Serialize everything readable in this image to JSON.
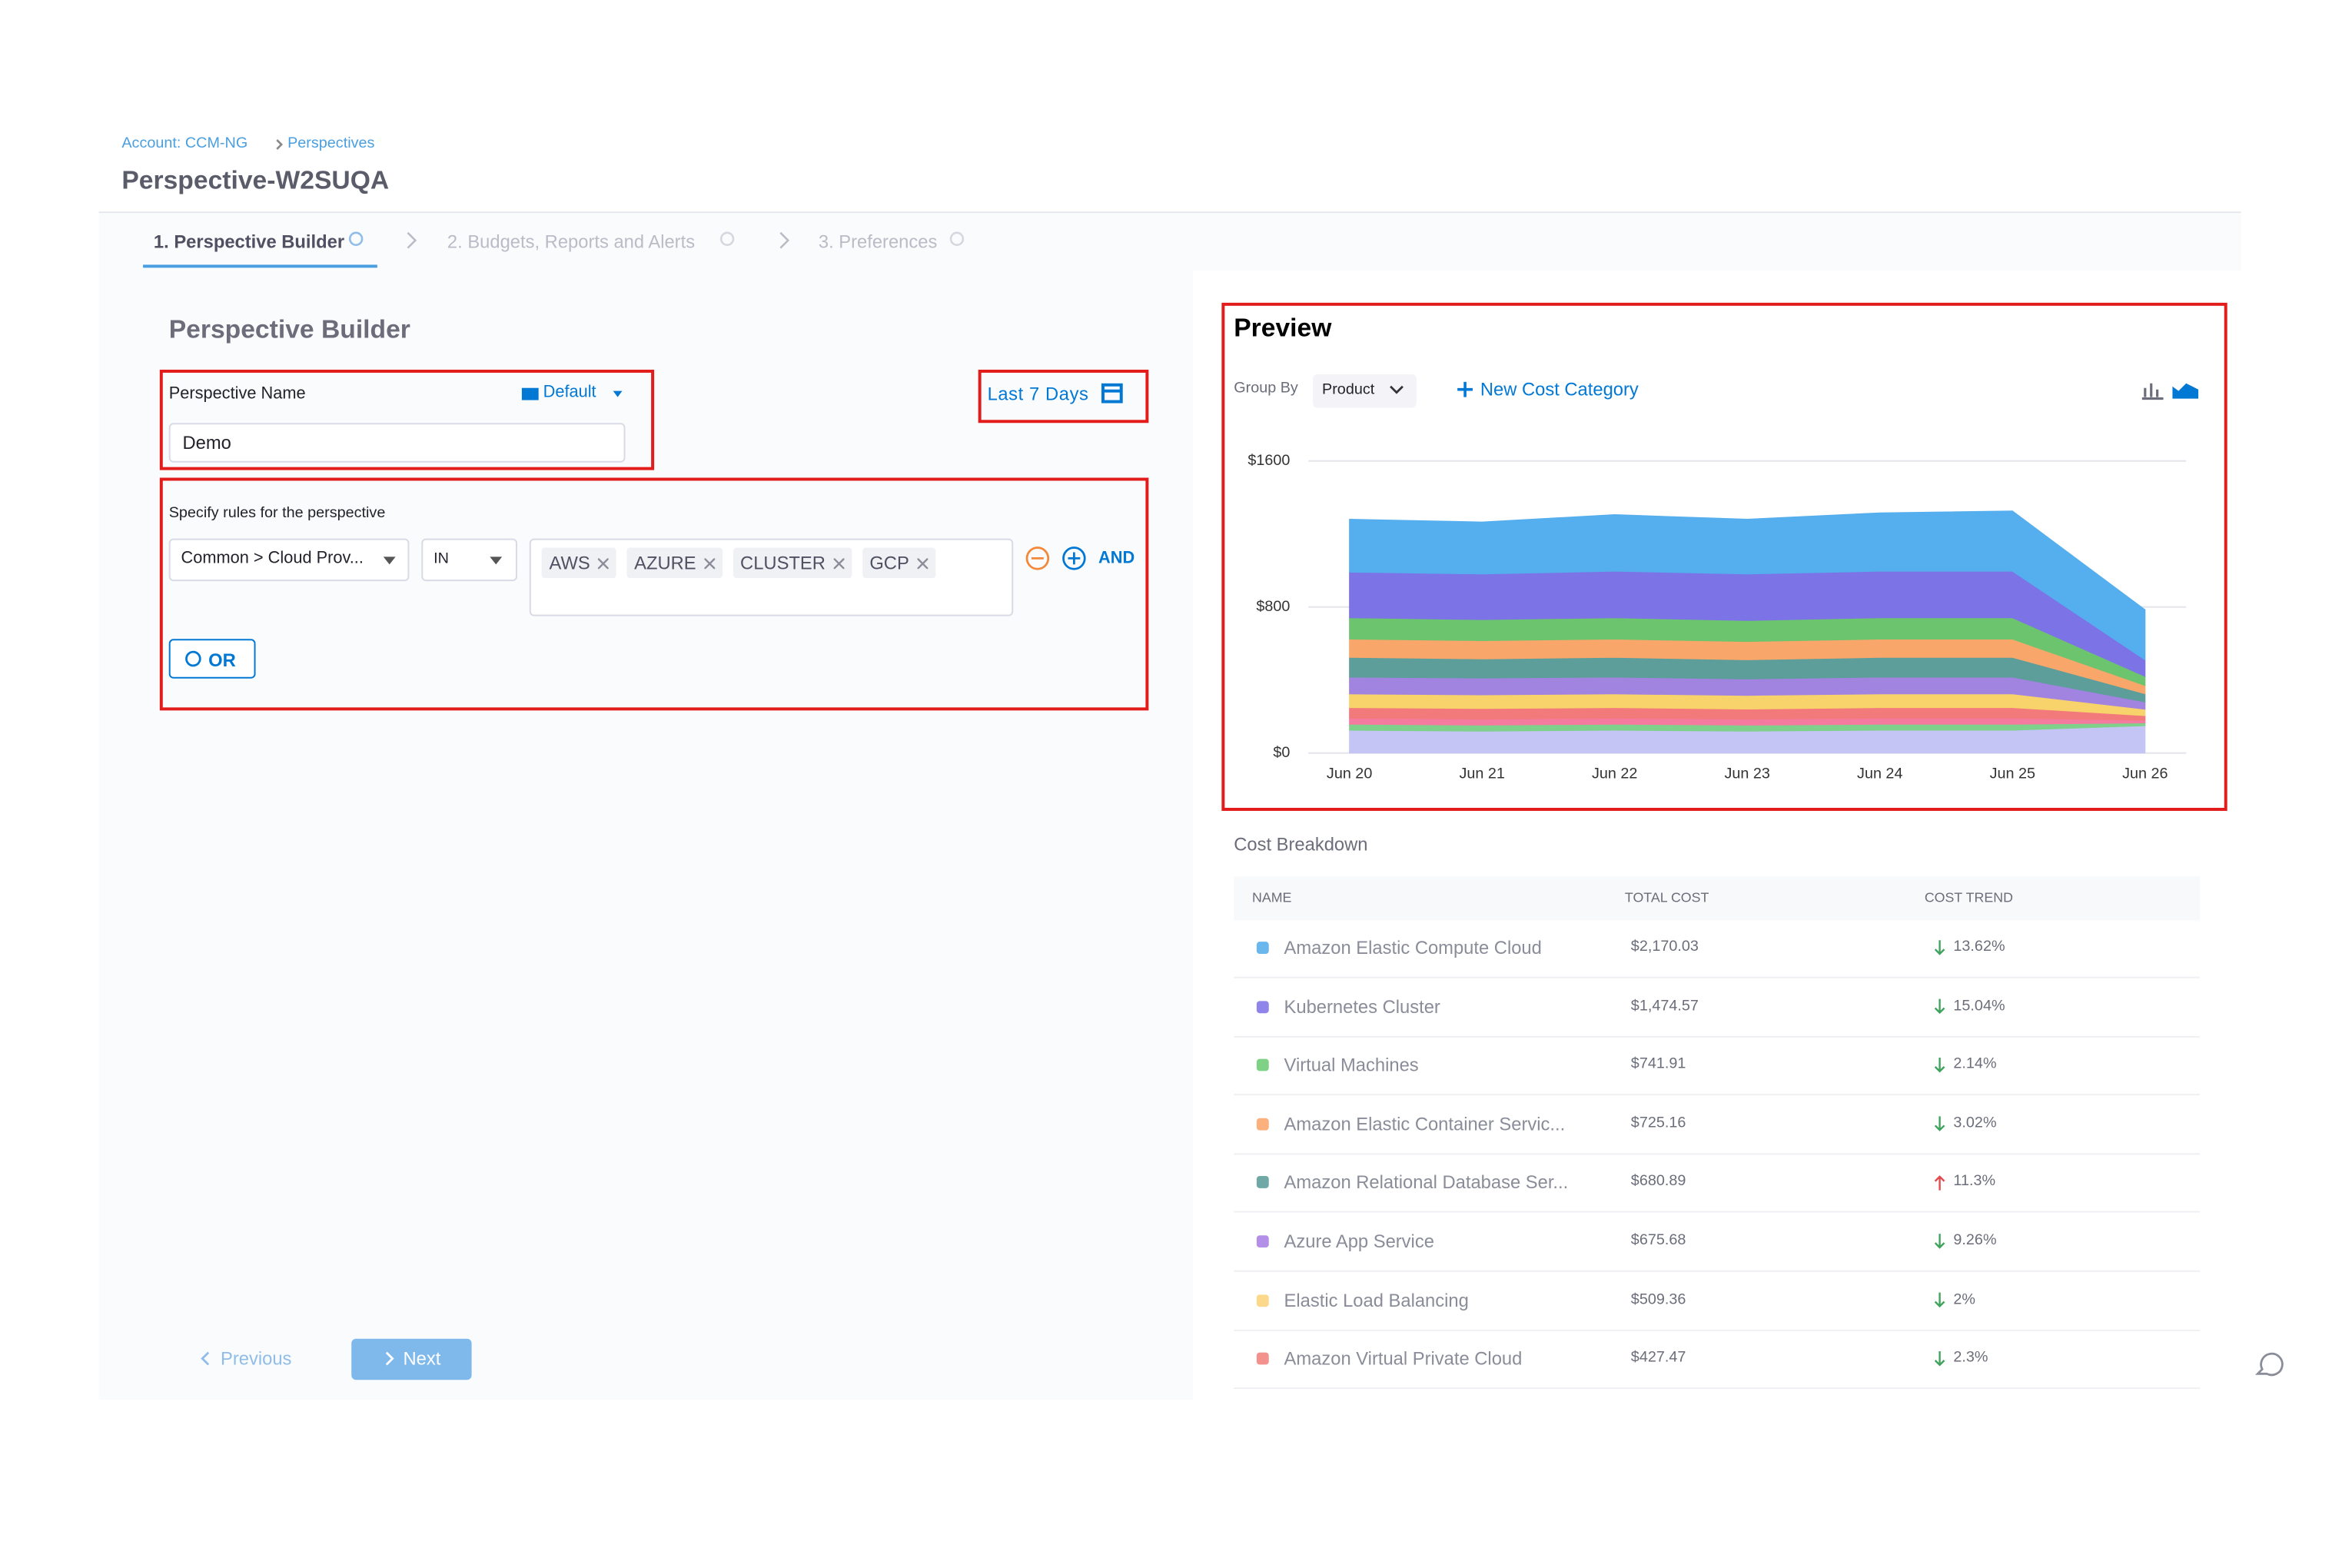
{
  "breadcrumb": [
    "Account: CCM-NG",
    "Perspectives"
  ],
  "title": "Perspective-W2SUQA",
  "steps": [
    "1. Perspective Builder",
    "2. Budgets, Reports and Alerts",
    "3. Preferences"
  ],
  "builder": {
    "heading": "Perspective Builder",
    "name_label": "Perspective Name",
    "folder": "Default",
    "name_value": "Demo",
    "time_range": "Last 7 Days",
    "rules_label": "Specify rules for the perspective",
    "field": "Common > Cloud Prov...",
    "operator": "IN",
    "values": [
      "AWS",
      "AZURE",
      "CLUSTER",
      "GCP"
    ],
    "and": "AND",
    "or": "OR"
  },
  "nav": {
    "previous": "Previous",
    "next": "Next"
  },
  "preview": {
    "heading": "Preview",
    "group_by_label": "Group By",
    "group_by": "Product",
    "new_category": "New Cost Category"
  },
  "chart_data": {
    "type": "area",
    "stacked": true,
    "grid": true,
    "categories": [
      "Jun 20",
      "Jun 21",
      "Jun 22",
      "Jun 23",
      "Jun 24",
      "Jun 25",
      "Jun 26"
    ],
    "ylim": [
      0,
      1600
    ],
    "yticks": [
      {
        "value": 0,
        "label": "$0"
      },
      {
        "value": 800,
        "label": "$800"
      },
      {
        "value": 1600,
        "label": "$1600"
      }
    ],
    "series": [
      {
        "color": "#c4c5f5",
        "values": [
          125,
          120,
          125,
          120,
          125,
          125,
          150
        ]
      },
      {
        "color": "#7fd08a",
        "values": [
          33,
          33,
          33,
          33,
          33,
          33,
          15
        ]
      },
      {
        "color": "#f57aa0",
        "values": [
          33,
          33,
          33,
          33,
          33,
          33,
          15
        ]
      },
      {
        "color": "#f27a7a",
        "values": [
          58,
          58,
          58,
          55,
          58,
          58,
          25
        ]
      },
      {
        "color": "#f8d36b",
        "values": [
          75,
          75,
          75,
          75,
          75,
          75,
          35
        ]
      },
      {
        "color": "#a183e0",
        "values": [
          92,
          92,
          92,
          90,
          92,
          92,
          40
        ]
      },
      {
        "color": "#5d9e9a",
        "values": [
          108,
          105,
          108,
          105,
          108,
          108,
          45
        ]
      },
      {
        "color": "#f9a66a",
        "values": [
          100,
          100,
          100,
          100,
          100,
          100,
          45
        ]
      },
      {
        "color": "#6cc46f",
        "values": [
          117,
          115,
          117,
          115,
          117,
          117,
          50
        ]
      },
      {
        "color": "#7c73e6",
        "values": [
          250,
          250,
          255,
          255,
          255,
          255,
          90
        ]
      },
      {
        "color": "#55aeee",
        "values": [
          290,
          285,
          310,
          300,
          320,
          330,
          275
        ]
      }
    ]
  },
  "breakdown": {
    "title": "Cost Breakdown",
    "columns": [
      "NAME",
      "TOTAL COST",
      "COST TREND"
    ],
    "rows": [
      {
        "color": "#6ab7ee",
        "name": "Amazon Elastic Compute Cloud",
        "cost": "$2,170.03",
        "trend": "13.62%",
        "direction": "down"
      },
      {
        "color": "#8e84ea",
        "name": "Kubernetes Cluster",
        "cost": "$1,474.57",
        "trend": "15.04%",
        "direction": "down"
      },
      {
        "color": "#7fd185",
        "name": "Virtual Machines",
        "cost": "$741.91",
        "trend": "2.14%",
        "direction": "down"
      },
      {
        "color": "#fbb07d",
        "name": "Amazon Elastic Container Servic...",
        "cost": "$725.16",
        "trend": "3.02%",
        "direction": "down"
      },
      {
        "color": "#6fa8a4",
        "name": "Amazon Relational Database Ser...",
        "cost": "$680.89",
        "trend": "11.3%",
        "direction": "up"
      },
      {
        "color": "#b38fe8",
        "name": "Azure App Service",
        "cost": "$675.68",
        "trend": "9.26%",
        "direction": "down"
      },
      {
        "color": "#fcd98a",
        "name": "Elastic Load Balancing",
        "cost": "$509.36",
        "trend": "2%",
        "direction": "down"
      },
      {
        "color": "#f3918d",
        "name": "Amazon Virtual Private Cloud",
        "cost": "$427.47",
        "trend": "2.3%",
        "direction": "down"
      }
    ]
  }
}
